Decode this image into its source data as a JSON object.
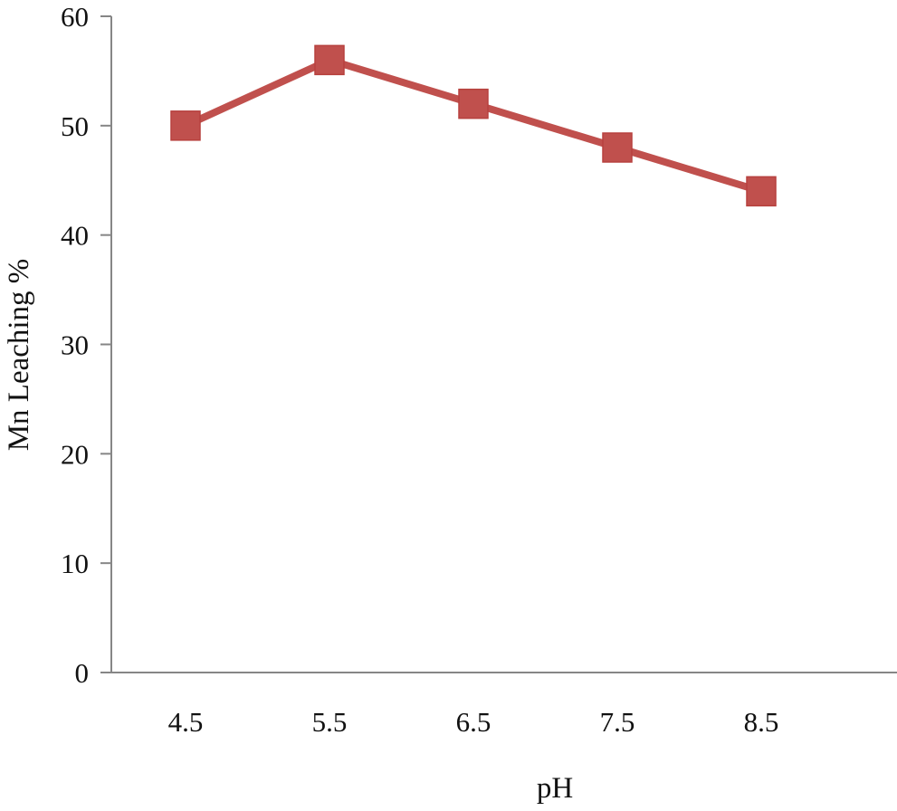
{
  "chart_data": {
    "type": "line",
    "title": "",
    "xlabel": "pH",
    "ylabel": "Mn Leaching %",
    "categories": [
      "4.5",
      "5.5",
      "6.5",
      "7.5",
      "8.5"
    ],
    "series": [
      {
        "values": [
          50,
          56,
          52,
          48,
          44
        ]
      }
    ],
    "ylim": [
      0,
      60
    ],
    "yticks": [
      "0",
      "10",
      "20",
      "30",
      "40",
      "50",
      "60"
    ],
    "grid": false,
    "legend": "none",
    "marker": "square",
    "colors": {
      "series": "#C0504D",
      "axis": "#868686",
      "text": "#111111"
    }
  }
}
